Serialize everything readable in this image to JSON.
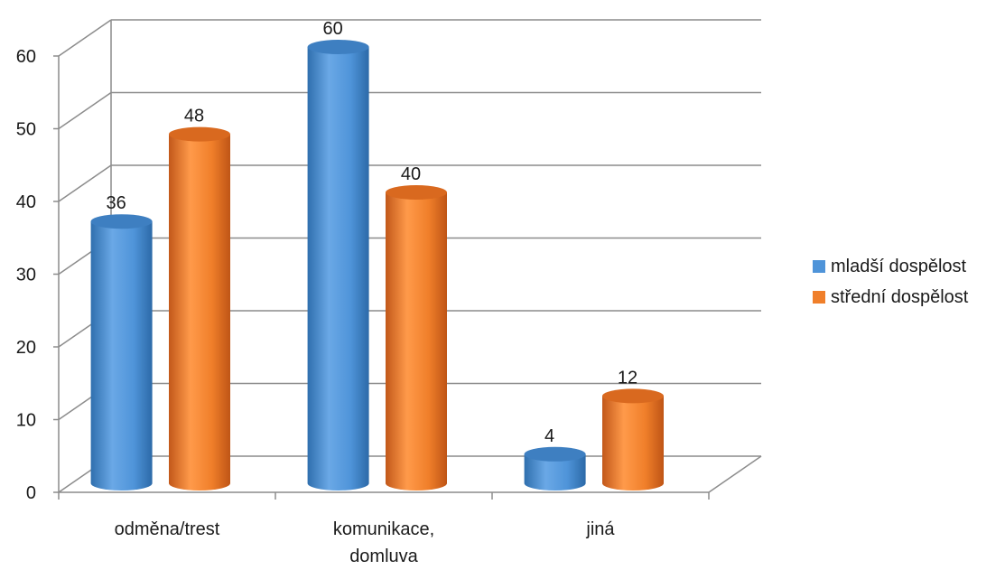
{
  "chart_data": {
    "type": "bar",
    "style": "3d-cylinder",
    "categories": [
      [
        "odměna/trest"
      ],
      [
        "komunikace,",
        "domluva"
      ],
      [
        "jiná"
      ]
    ],
    "series": [
      {
        "name": "mladší dospělost",
        "values": [
          36,
          60,
          4
        ],
        "color": "#4f94d9"
      },
      {
        "name": "střední dospělost",
        "values": [
          48,
          40,
          12
        ],
        "color": "#f07f2a"
      }
    ],
    "yticks": [
      0,
      10,
      20,
      30,
      40,
      50,
      60
    ],
    "ylim": [
      0,
      60
    ],
    "grid": true,
    "legend_position": "right",
    "title": "",
    "xlabel": "",
    "ylabel": ""
  },
  "legend": {
    "items": [
      {
        "label": "mladší dospělost",
        "color": "#4f94d9"
      },
      {
        "label": "střední dospělost",
        "color": "#f07f2a"
      }
    ]
  }
}
